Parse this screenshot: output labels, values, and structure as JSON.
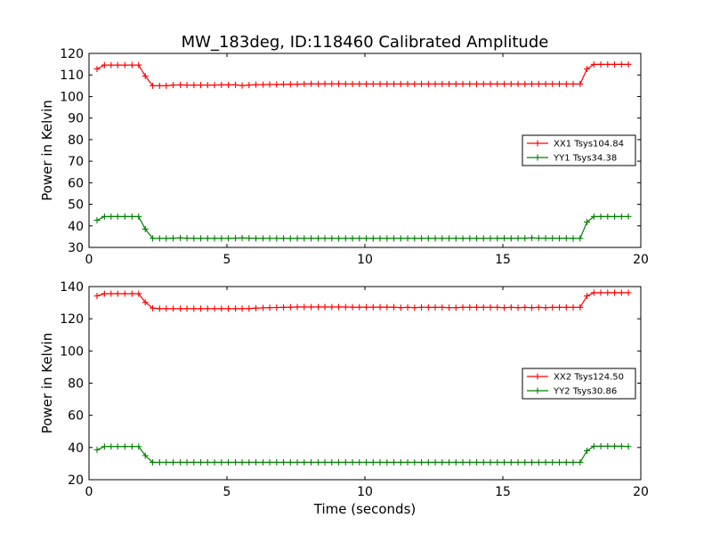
{
  "title": "MW_183deg, ID:118460 Calibrated Amplitude",
  "chart_data": [
    {
      "type": "line",
      "ylabel": "Power in Kelvin",
      "xlabel": "",
      "xlim": [
        0,
        20
      ],
      "ylim": [
        30,
        120
      ],
      "xticks": [
        "0",
        "5",
        "10",
        "15",
        "20"
      ],
      "yticks": [
        "30",
        "40",
        "50",
        "60",
        "70",
        "80",
        "90",
        "100",
        "110",
        "120"
      ],
      "legend_position": "right",
      "x": [
        0.29,
        0.56,
        0.8,
        1.04,
        1.3,
        1.56,
        1.8,
        2.04,
        2.31,
        2.56,
        2.8,
        3.05,
        3.31,
        3.55,
        3.8,
        4.05,
        4.3,
        4.55,
        4.8,
        5.05,
        5.31,
        5.55,
        5.8,
        6.05,
        6.31,
        6.55,
        6.8,
        7.05,
        7.3,
        7.55,
        7.8,
        8.05,
        8.31,
        8.55,
        8.8,
        9.05,
        9.3,
        9.55,
        9.8,
        10.05,
        10.3,
        10.55,
        10.8,
        11.05,
        11.3,
        11.55,
        11.8,
        12.05,
        12.3,
        12.55,
        12.8,
        13.05,
        13.3,
        13.55,
        13.8,
        14.05,
        14.3,
        14.55,
        14.8,
        15.05,
        15.3,
        15.55,
        15.8,
        16.05,
        16.3,
        16.55,
        16.8,
        17.05,
        17.3,
        17.55,
        17.8,
        18.05,
        18.3,
        18.55,
        18.8,
        19.05,
        19.3,
        19.55
      ],
      "series": [
        {
          "name": "XX1 Tsys104.84",
          "color": "#ff0000",
          "values": [
            112.8,
            114.6,
            114.6,
            114.6,
            114.6,
            114.6,
            114.6,
            109.5,
            105.0,
            105.0,
            105.0,
            105.3,
            105.4,
            105.3,
            105.3,
            105.3,
            105.3,
            105.3,
            105.4,
            105.4,
            105.4,
            105.1,
            105.3,
            105.5,
            105.5,
            105.6,
            105.6,
            105.7,
            105.7,
            105.7,
            105.8,
            105.9,
            105.8,
            105.9,
            105.9,
            105.9,
            105.8,
            105.8,
            105.8,
            105.8,
            105.8,
            105.8,
            105.8,
            105.8,
            105.8,
            105.8,
            105.8,
            105.8,
            105.8,
            105.8,
            105.8,
            105.8,
            105.8,
            105.8,
            105.8,
            105.8,
            105.8,
            105.8,
            105.8,
            105.8,
            105.8,
            105.8,
            105.8,
            105.8,
            105.8,
            105.8,
            105.8,
            105.8,
            105.8,
            105.8,
            105.8,
            112.8,
            114.9,
            114.9,
            114.9,
            114.9,
            114.9,
            114.9
          ]
        },
        {
          "name": "YY1 Tsys34.38",
          "color": "#008000",
          "values": [
            42.6,
            44.3,
            44.3,
            44.3,
            44.3,
            44.3,
            44.3,
            38.5,
            34.2,
            34.2,
            34.2,
            34.3,
            34.4,
            34.3,
            34.2,
            34.2,
            34.2,
            34.2,
            34.2,
            34.2,
            34.3,
            34.4,
            34.3,
            34.2,
            34.2,
            34.2,
            34.2,
            34.2,
            34.2,
            34.2,
            34.2,
            34.2,
            34.2,
            34.2,
            34.2,
            34.2,
            34.2,
            34.2,
            34.2,
            34.2,
            34.2,
            34.2,
            34.2,
            34.2,
            34.2,
            34.2,
            34.2,
            34.2,
            34.2,
            34.2,
            34.2,
            34.2,
            34.2,
            34.2,
            34.2,
            34.2,
            34.2,
            34.2,
            34.2,
            34.3,
            34.2,
            34.3,
            34.3,
            34.4,
            34.3,
            34.3,
            34.3,
            34.2,
            34.3,
            34.2,
            34.2,
            41.8,
            44.3,
            44.3,
            44.3,
            44.3,
            44.3,
            44.3
          ]
        }
      ]
    },
    {
      "type": "line",
      "ylabel": "Power in Kelvin",
      "xlabel": "Time (seconds)",
      "xlim": [
        0,
        20
      ],
      "ylim": [
        20,
        140
      ],
      "xticks": [
        "0",
        "5",
        "10",
        "15",
        "20"
      ],
      "yticks": [
        "20",
        "40",
        "60",
        "80",
        "100",
        "120",
        "140"
      ],
      "legend_position": "right",
      "x": [
        0.29,
        0.56,
        0.8,
        1.04,
        1.3,
        1.56,
        1.8,
        2.04,
        2.31,
        2.56,
        2.8,
        3.05,
        3.31,
        3.55,
        3.8,
        4.05,
        4.3,
        4.55,
        4.8,
        5.05,
        5.31,
        5.55,
        5.8,
        6.05,
        6.31,
        6.55,
        6.8,
        7.05,
        7.3,
        7.55,
        7.8,
        8.05,
        8.31,
        8.55,
        8.8,
        9.05,
        9.3,
        9.55,
        9.8,
        10.05,
        10.3,
        10.55,
        10.8,
        11.05,
        11.3,
        11.55,
        11.8,
        12.05,
        12.3,
        12.55,
        12.8,
        13.05,
        13.3,
        13.55,
        13.8,
        14.05,
        14.3,
        14.55,
        14.8,
        15.05,
        15.3,
        15.55,
        15.8,
        16.05,
        16.3,
        16.55,
        16.8,
        17.05,
        17.3,
        17.55,
        17.8,
        18.05,
        18.3,
        18.55,
        18.8,
        19.05,
        19.3,
        19.55
      ],
      "series": [
        {
          "name": "XX2 Tsys124.50",
          "color": "#ff0000",
          "values": [
            134.2,
            135.6,
            135.6,
            135.6,
            135.6,
            135.6,
            135.6,
            130.2,
            126.6,
            126.3,
            126.3,
            126.3,
            126.3,
            126.3,
            126.3,
            126.3,
            126.3,
            126.3,
            126.3,
            126.3,
            126.3,
            126.3,
            126.3,
            126.6,
            126.8,
            126.9,
            127.0,
            127.1,
            127.2,
            127.3,
            127.3,
            127.3,
            127.3,
            127.3,
            127.3,
            127.3,
            127.3,
            127.2,
            127.2,
            127.2,
            127.2,
            127.2,
            127.2,
            127.2,
            126.9,
            127.1,
            126.9,
            127.1,
            127.1,
            127.1,
            127.1,
            126.9,
            126.9,
            127.1,
            127.1,
            127.1,
            127.1,
            127.1,
            127.1,
            126.9,
            127.1,
            126.9,
            127.1,
            126.9,
            127.1,
            126.9,
            127.1,
            127.1,
            127.1,
            127.1,
            127.1,
            134.2,
            136.2,
            136.2,
            136.2,
            136.2,
            136.2,
            136.2
          ]
        },
        {
          "name": "YY2 Tsys30.86",
          "color": "#008000",
          "values": [
            38.6,
            40.6,
            40.6,
            40.6,
            40.6,
            40.6,
            40.6,
            35.0,
            30.8,
            30.8,
            30.8,
            30.8,
            30.8,
            30.8,
            30.8,
            30.8,
            30.8,
            30.8,
            30.8,
            30.8,
            30.8,
            30.8,
            30.8,
            30.8,
            30.8,
            30.8,
            30.8,
            30.8,
            30.8,
            30.8,
            30.8,
            30.8,
            30.8,
            30.8,
            30.8,
            30.8,
            30.8,
            30.8,
            30.8,
            30.8,
            30.8,
            30.8,
            30.8,
            30.8,
            30.8,
            30.8,
            30.8,
            30.8,
            30.8,
            30.8,
            30.8,
            30.8,
            30.8,
            30.8,
            30.8,
            30.8,
            30.8,
            30.8,
            30.8,
            30.8,
            30.8,
            30.8,
            30.8,
            30.8,
            30.8,
            30.8,
            30.8,
            30.8,
            30.8,
            30.8,
            30.8,
            38.0,
            40.8,
            40.8,
            40.8,
            40.8,
            40.8,
            40.6
          ]
        }
      ]
    }
  ]
}
